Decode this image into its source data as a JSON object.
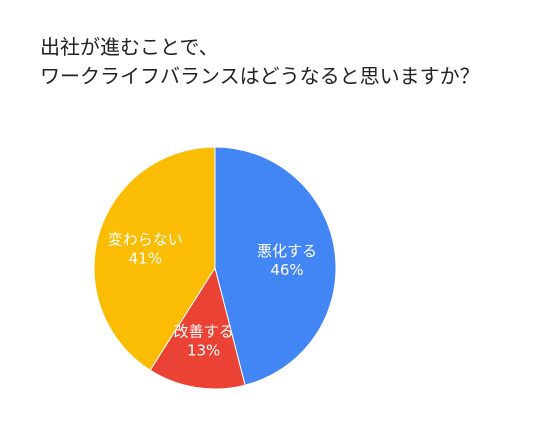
{
  "chart_data": {
    "type": "pie",
    "title_lines": [
      "出社が進むことで、",
      "ワークライフバランスはどうなると思いますか？"
    ],
    "slices": [
      {
        "name": "悪化する",
        "value": 46,
        "value_label": "46%",
        "color": "#4285f4"
      },
      {
        "name": "改善する",
        "value": 13,
        "value_label": "13%",
        "color": "#ea4335"
      },
      {
        "name": "変わらない",
        "value": 41,
        "value_label": "41%",
        "color": "#fbbc04"
      }
    ],
    "legend": "none",
    "start": "top",
    "direction": "clockwise",
    "slice_border_color": "#ffffff"
  }
}
